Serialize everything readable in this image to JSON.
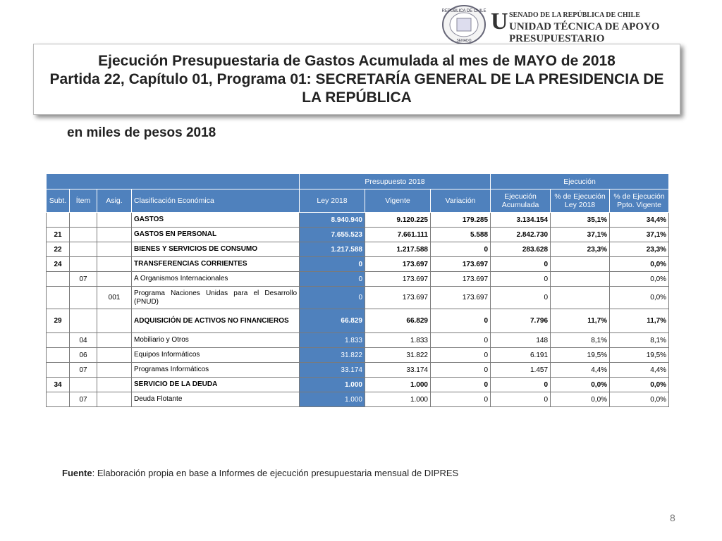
{
  "logo": {
    "seal_top": "REPÚBLICA DE CHILE",
    "seal_bottom": "SENADO",
    "line1": "SENADO DE LA REPÚBLICA DE CHILE",
    "line2": "UNIDAD TÉCNICA DE APOYO PRESUPUESTARIO"
  },
  "header": {
    "title": "Ejecución Presupuestaria de Gastos Acumulada al mes de MAYO de 2018",
    "subtitle": "Partida 22, Capítulo 01, Programa 01: SECRETARÍA GENERAL DE LA PRESIDENCIA DE LA REPÚBLICA"
  },
  "units": "en miles de pesos 2018",
  "table": {
    "groups": [
      "Presupuesto 2018",
      "Ejecución"
    ],
    "columns": [
      "Subt.",
      "Ítem",
      "Asig.",
      "Clasificación Económica",
      "Ley 2018",
      "Vigente",
      "Variación",
      "Ejecución Acumulada",
      "% de Ejecución Ley 2018",
      "% de Ejecución Ppto. Vigente"
    ],
    "rows": [
      [
        null,
        null,
        null,
        "GASTOS",
        "8.940.940",
        "9.120.225",
        "179.285",
        "3.134.154",
        "35,1%",
        "34,4%"
      ],
      [
        "21",
        null,
        null,
        "GASTOS EN PERSONAL",
        "7.655.523",
        "7.661.111",
        "5.588",
        "2.842.730",
        "37,1%",
        "37,1%"
      ],
      [
        "22",
        null,
        null,
        "BIENES Y SERVICIOS DE CONSUMO",
        "1.217.588",
        "1.217.588",
        "0",
        "283.628",
        "23,3%",
        "23,3%"
      ],
      [
        "24",
        null,
        null,
        "TRANSFERENCIAS CORRIENTES",
        "0",
        "173.697",
        "173.697",
        "0",
        null,
        "0,0%"
      ],
      [
        null,
        "07",
        null,
        "A Organismos Internacionales",
        "0",
        "173.697",
        "173.697",
        "0",
        null,
        "0,0%"
      ],
      [
        null,
        null,
        "001",
        "Programa Naciones Unidas para el Desarrollo (PNUD)",
        "0",
        "173.697",
        "173.697",
        "0",
        null,
        "0,0%"
      ],
      [
        "29",
        null,
        null,
        "ADQUISICIÓN DE ACTIVOS NO FINANCIEROS",
        "66.829",
        "66.829",
        "0",
        "7.796",
        "11,7%",
        "11,7%"
      ],
      [
        null,
        "04",
        null,
        "Mobiliario y Otros",
        "1.833",
        "1.833",
        "0",
        "148",
        "8,1%",
        "8,1%"
      ],
      [
        null,
        "06",
        null,
        "Equipos Informáticos",
        "31.822",
        "31.822",
        "0",
        "6.191",
        "19,5%",
        "19,5%"
      ],
      [
        null,
        "07",
        null,
        "Programas Informáticos",
        "33.174",
        "33.174",
        "0",
        "1.457",
        "4,4%",
        "4,4%"
      ],
      [
        "34",
        null,
        null,
        "SERVICIO DE LA DEUDA",
        "1.000",
        "1.000",
        "0",
        "0",
        "0,0%",
        "0,0%"
      ],
      [
        null,
        "07",
        null,
        "Deuda Flotante",
        "1.000",
        "1.000",
        "0",
        "0",
        "0,0%",
        "0,0%"
      ]
    ]
  },
  "source": {
    "label": "Fuente",
    "text": ": Elaboración propia en base  a Informes de ejecución presupuestaria mensual de DIPRES"
  },
  "page_number": "8"
}
